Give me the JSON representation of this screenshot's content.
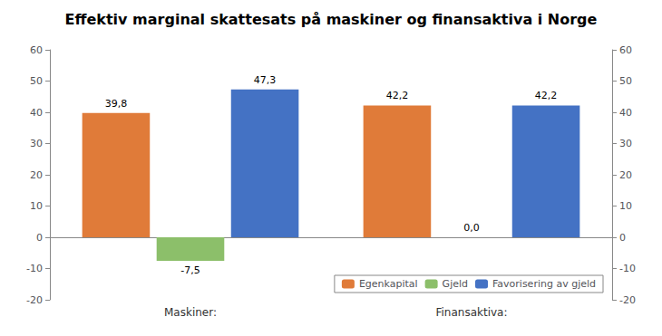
{
  "chart_data": {
    "type": "bar",
    "title": "Effektiv marginal skattesats på maskiner og finansaktiva i Norge",
    "categories": [
      "Maskiner:",
      "Finansaktiva:"
    ],
    "series": [
      {
        "name": "Egenkapital",
        "color": "#E07B39",
        "values": [
          39.8,
          42.2
        ],
        "value_labels": [
          "39,8",
          "42,2"
        ]
      },
      {
        "name": "Gjeld",
        "color": "#8CBF6A",
        "values": [
          -7.5,
          0.0
        ],
        "value_labels": [
          "-7,5",
          "0,0"
        ]
      },
      {
        "name": "Favorisering av gjeld",
        "color": "#4472C4",
        "values": [
          47.3,
          42.2
        ],
        "value_labels": [
          "47,3",
          "42,2"
        ]
      }
    ],
    "ylim": [
      -20,
      60
    ],
    "yticks": [
      -20,
      -10,
      0,
      10,
      20,
      30,
      40,
      50,
      60
    ],
    "y2lim": [
      -20,
      60
    ],
    "y2ticks": [
      -20,
      -10,
      0,
      10,
      20,
      30,
      40,
      50,
      60
    ],
    "data_labels": true,
    "legend": "lower right",
    "grid": false
  }
}
